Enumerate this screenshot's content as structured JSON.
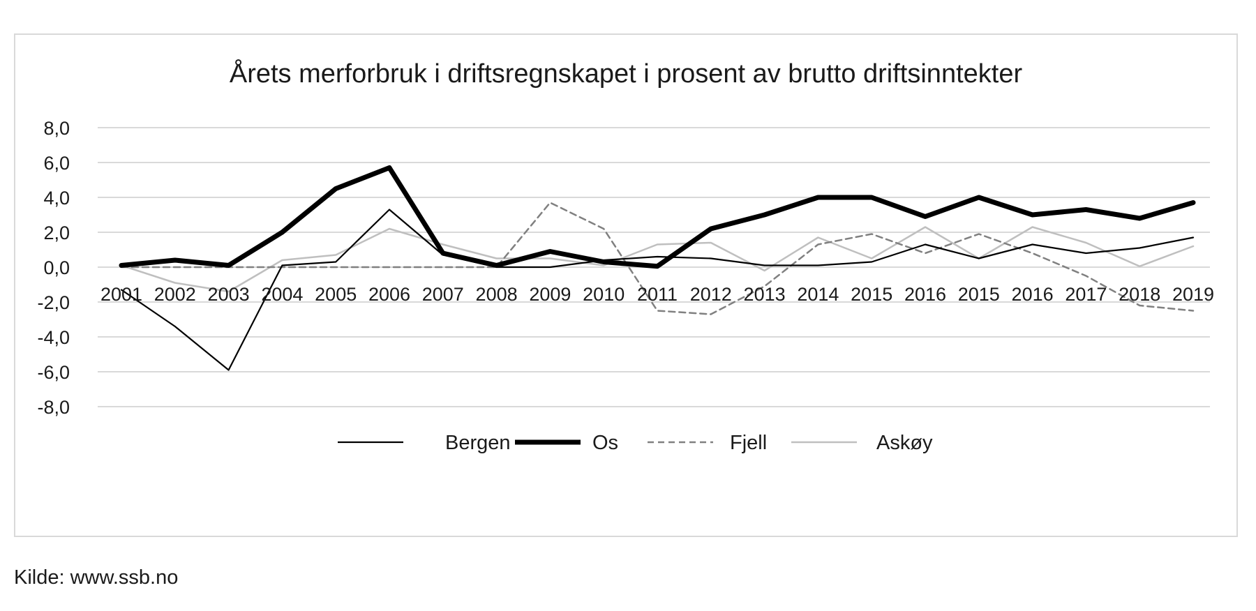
{
  "chart_data": {
    "type": "line",
    "title": "Årets merforbruk i driftsregnskapet i prosent av brutto driftsinntekter",
    "categories": [
      "2001",
      "2002",
      "2003",
      "2004",
      "2005",
      "2006",
      "2007",
      "2008",
      "2009",
      "2010",
      "2011",
      "2012",
      "2013",
      "2014",
      "2015",
      "2016",
      "2015",
      "2016",
      "2017",
      "2018",
      "2019"
    ],
    "y_ticks": [
      "8,0",
      "6,0",
      "4,0",
      "2,0",
      "0,0",
      "-2,0",
      "-4,0",
      "-6,0",
      "-8,0"
    ],
    "ylim": [
      -8,
      8
    ],
    "grid": true,
    "legend_position": "bottom",
    "series": [
      {
        "name": "Bergen",
        "color": "#000000",
        "style": "thin-solid",
        "values": [
          -1.3,
          -3.4,
          -5.9,
          0.1,
          0.3,
          3.3,
          0.7,
          0.0,
          0.0,
          0.4,
          0.6,
          0.5,
          0.1,
          0.1,
          0.3,
          1.3,
          0.5,
          1.3,
          0.8,
          1.1,
          1.7
        ]
      },
      {
        "name": "Os",
        "color": "#000000",
        "style": "thick-solid",
        "values": [
          0.1,
          0.4,
          0.1,
          2.0,
          4.5,
          5.7,
          0.8,
          0.1,
          0.9,
          0.3,
          0.05,
          2.2,
          3.0,
          4.0,
          4.0,
          2.9,
          4.0,
          3.0,
          3.3,
          2.8,
          3.7
        ]
      },
      {
        "name": "Fjell",
        "color": "#808080",
        "style": "dashed",
        "values": [
          0.0,
          0.0,
          0.0,
          0.0,
          0.0,
          0.0,
          0.0,
          0.0,
          3.7,
          2.2,
          -2.5,
          -2.7,
          -1.1,
          1.3,
          1.9,
          0.8,
          1.9,
          0.8,
          -0.5,
          -2.2,
          -2.5
        ]
      },
      {
        "name": "Askøy",
        "color": "#bfbfbf",
        "style": "solid",
        "values": [
          0.1,
          -0.9,
          -1.4,
          0.4,
          0.7,
          2.2,
          1.3,
          0.5,
          0.5,
          0.1,
          1.3,
          1.4,
          -0.2,
          1.7,
          0.5,
          2.3,
          0.5,
          2.3,
          1.4,
          0.05,
          1.2
        ]
      }
    ]
  },
  "source": "Kilde: www.ssb.no"
}
